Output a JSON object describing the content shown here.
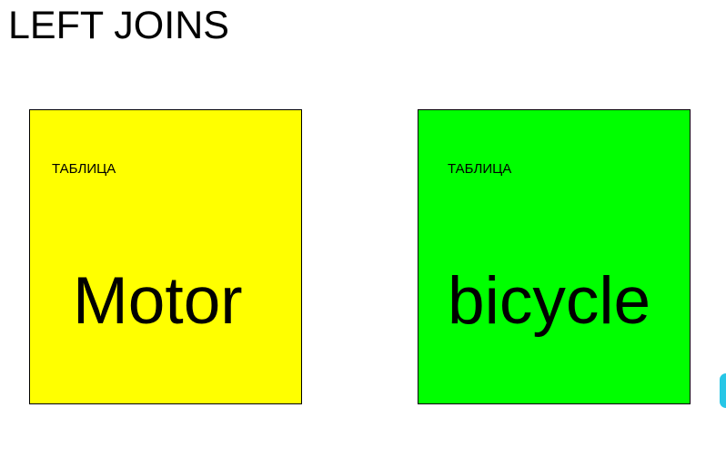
{
  "slide": {
    "title": "LEFT JOINS"
  },
  "tables": [
    {
      "caption": "ТАБЛИЦА",
      "name": "Motor",
      "color": "#ffff00"
    },
    {
      "caption": "ТАБЛИЦА",
      "name": "bicycle",
      "color": "#00ff00"
    }
  ],
  "colors": {
    "background": "#ffffff",
    "border": "#000000",
    "edge_handle": "#27c6e6"
  }
}
